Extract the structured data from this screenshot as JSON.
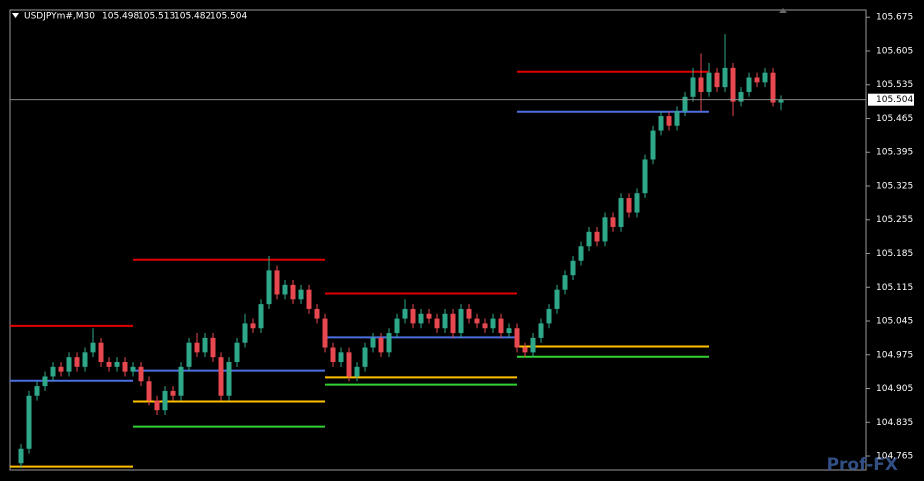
{
  "chart_data": {
    "type": "candlestick",
    "symbol": "USDJPYm#,M30",
    "watermark": "Prof-FX",
    "up_color": "#2fa88a",
    "down_color": "#e8484f",
    "background": "#000000",
    "ylim": [
      104.736,
      105.69
    ],
    "yticks": [
      105.675,
      105.605,
      105.535,
      105.465,
      105.395,
      105.325,
      105.255,
      105.185,
      105.115,
      105.045,
      104.975,
      104.905,
      104.835,
      104.765
    ],
    "open": [
      104.75,
      104.78,
      104.89,
      104.91,
      104.93,
      104.95,
      104.94,
      104.97,
      104.95,
      104.98,
      105.0,
      104.96,
      104.95,
      104.96,
      104.94,
      104.95,
      104.92,
      104.88,
      104.86,
      104.9,
      104.89,
      104.95,
      105.0,
      104.98,
      105.01,
      104.97,
      104.89,
      104.96,
      105.0,
      105.04,
      105.03,
      105.08,
      105.15,
      105.1,
      105.12,
      105.09,
      105.11,
      105.07,
      105.05,
      104.99,
      104.96,
      104.98,
      104.93,
      104.95,
      104.99,
      105.01,
      104.98,
      105.02,
      105.05,
      105.07,
      105.04,
      105.06,
      105.05,
      105.03,
      105.06,
      105.02,
      105.07,
      105.05,
      105.04,
      105.03,
      105.05,
      105.02,
      105.03,
      104.99,
      104.98,
      105.01,
      105.04,
      105.07,
      105.11,
      105.14,
      105.17,
      105.2,
      105.23,
      105.21,
      105.26,
      105.24,
      105.3,
      105.27,
      105.31,
      105.38,
      105.44,
      105.47,
      105.45,
      105.48,
      105.51,
      105.55,
      105.52,
      105.56,
      105.53,
      105.57,
      105.5,
      105.52,
      105.55,
      105.54,
      105.56,
      105.498
    ],
    "high": [
      104.79,
      104.9,
      104.92,
      104.94,
      104.96,
      104.96,
      104.98,
      104.98,
      104.99,
      105.03,
      105.01,
      104.97,
      104.97,
      104.97,
      104.96,
      104.96,
      104.93,
      104.89,
      104.91,
      104.91,
      104.96,
      105.01,
      105.02,
      105.02,
      105.02,
      104.98,
      104.97,
      105.01,
      105.06,
      105.05,
      105.09,
      105.18,
      105.16,
      105.13,
      105.13,
      105.12,
      105.12,
      105.08,
      105.06,
      105.0,
      104.99,
      104.99,
      104.96,
      105.0,
      105.02,
      105.02,
      105.03,
      105.06,
      105.09,
      105.08,
      105.07,
      105.07,
      105.06,
      105.07,
      105.07,
      105.08,
      105.08,
      105.06,
      105.05,
      105.06,
      105.06,
      105.04,
      105.04,
      105.0,
      105.02,
      105.05,
      105.08,
      105.12,
      105.15,
      105.18,
      105.21,
      105.24,
      105.24,
      105.27,
      105.27,
      105.31,
      105.31,
      105.32,
      105.39,
      105.45,
      105.48,
      105.48,
      105.49,
      105.52,
      105.57,
      105.6,
      105.58,
      105.57,
      105.64,
      105.58,
      105.53,
      105.56,
      105.56,
      105.57,
      105.57,
      105.513
    ],
    "low": [
      104.74,
      104.77,
      104.88,
      104.9,
      104.92,
      104.93,
      104.93,
      104.94,
      104.94,
      104.97,
      104.95,
      104.94,
      104.94,
      104.93,
      104.93,
      104.91,
      104.87,
      104.85,
      104.85,
      104.88,
      104.88,
      104.94,
      104.97,
      104.97,
      104.96,
      104.88,
      104.88,
      104.95,
      104.99,
      105.02,
      105.02,
      105.07,
      105.09,
      105.09,
      105.08,
      105.08,
      105.06,
      105.04,
      104.98,
      104.95,
      104.95,
      104.92,
      104.92,
      104.94,
      104.98,
      104.97,
      104.97,
      105.01,
      105.04,
      105.03,
      105.03,
      105.04,
      105.02,
      105.02,
      105.01,
      105.01,
      105.04,
      105.03,
      105.02,
      105.02,
      105.01,
      105.01,
      104.98,
      104.97,
      104.97,
      105.0,
      105.03,
      105.06,
      105.1,
      105.13,
      105.16,
      105.19,
      105.2,
      105.2,
      105.23,
      105.23,
      105.26,
      105.26,
      105.3,
      105.37,
      105.43,
      105.44,
      105.44,
      105.47,
      105.5,
      105.48,
      105.51,
      105.52,
      105.52,
      105.47,
      105.49,
      105.51,
      105.53,
      105.53,
      105.49,
      105.482
    ],
    "close": [
      104.78,
      104.89,
      104.91,
      104.93,
      104.95,
      104.94,
      104.97,
      104.95,
      104.98,
      105.0,
      104.96,
      104.95,
      104.96,
      104.94,
      104.95,
      104.92,
      104.88,
      104.86,
      104.9,
      104.89,
      104.95,
      105.0,
      104.98,
      105.01,
      104.97,
      104.89,
      104.96,
      105.0,
      105.04,
      105.03,
      105.08,
      105.15,
      105.1,
      105.12,
      105.09,
      105.11,
      105.07,
      105.05,
      104.99,
      104.96,
      104.98,
      104.93,
      104.95,
      104.99,
      105.01,
      104.98,
      105.02,
      105.05,
      105.07,
      105.04,
      105.06,
      105.05,
      105.03,
      105.06,
      105.02,
      105.07,
      105.05,
      105.04,
      105.03,
      105.05,
      105.02,
      105.03,
      104.99,
      104.98,
      105.01,
      105.04,
      105.07,
      105.11,
      105.14,
      105.17,
      105.2,
      105.23,
      105.21,
      105.26,
      105.24,
      105.3,
      105.27,
      105.31,
      105.38,
      105.44,
      105.47,
      105.45,
      105.48,
      105.51,
      105.55,
      105.52,
      105.56,
      105.53,
      105.57,
      105.5,
      105.52,
      105.55,
      105.54,
      105.56,
      105.498,
      105.504
    ],
    "levels": [
      {
        "color": "#e00000",
        "x": [
          -1.4,
          14
        ],
        "value": 105.035
      },
      {
        "color": "#4a6fe0",
        "x": [
          -1.4,
          14
        ],
        "value": 104.921
      },
      {
        "color": "#ffc000",
        "x": [
          -1.4,
          14
        ],
        "value": 104.743
      },
      {
        "color": "#e00000",
        "x": [
          14,
          38
        ],
        "value": 105.172
      },
      {
        "color": "#4a6fe0",
        "x": [
          14,
          38
        ],
        "value": 104.942
      },
      {
        "color": "#ffc000",
        "x": [
          14,
          38
        ],
        "value": 104.878
      },
      {
        "color": "#32d232",
        "x": [
          14,
          38
        ],
        "value": 104.826
      },
      {
        "color": "#e00000",
        "x": [
          38,
          62
        ],
        "value": 105.102
      },
      {
        "color": "#4a6fe0",
        "x": [
          38,
          62
        ],
        "value": 105.011
      },
      {
        "color": "#ffc000",
        "x": [
          38,
          62
        ],
        "value": 104.928
      },
      {
        "color": "#32d232",
        "x": [
          38,
          62
        ],
        "value": 104.913
      },
      {
        "color": "#e00000",
        "x": [
          62,
          86
        ],
        "value": 105.562
      },
      {
        "color": "#4a6fe0",
        "x": [
          62,
          86
        ],
        "value": 105.479
      },
      {
        "color": "#ffc000",
        "x": [
          62,
          86
        ],
        "value": 104.992
      },
      {
        "color": "#32d232",
        "x": [
          62,
          86
        ],
        "value": 104.971
      }
    ]
  }
}
